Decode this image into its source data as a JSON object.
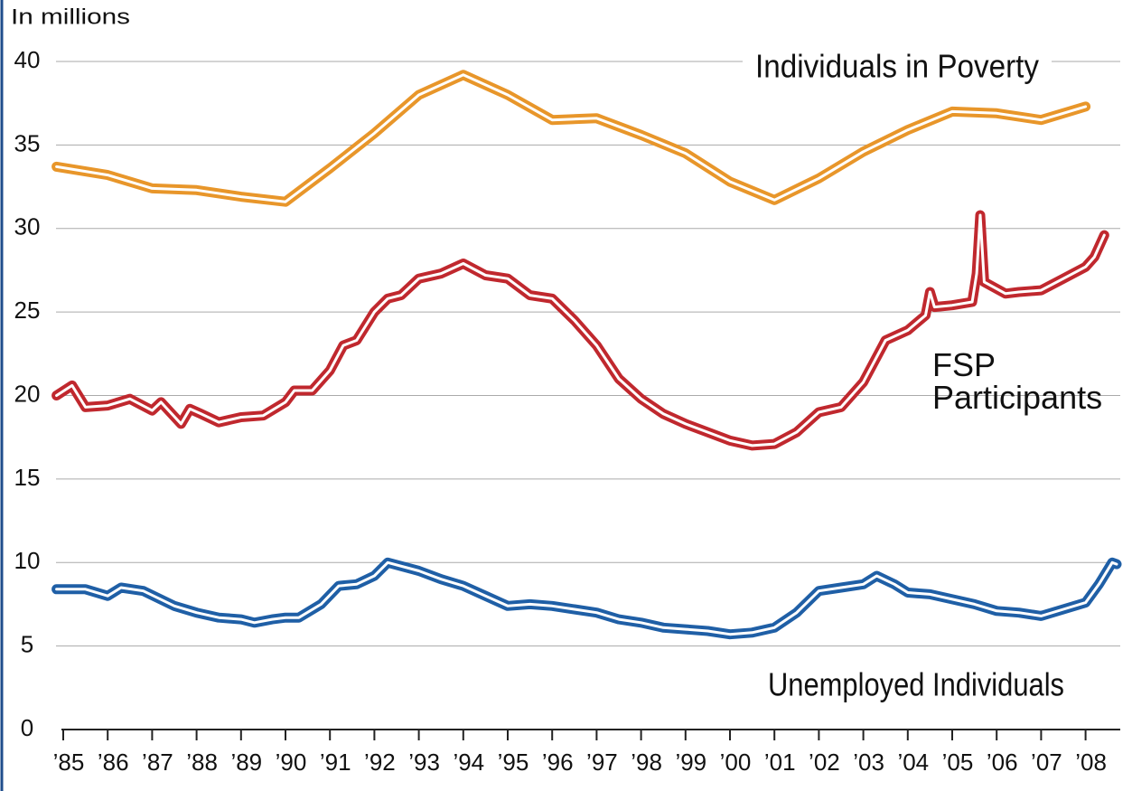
{
  "chart_data": {
    "type": "line",
    "y_label": "In millions",
    "xlim": [
      1984.85,
      2008.8
    ],
    "xticks": [
      {
        "value": 1985,
        "label": "’85"
      },
      {
        "value": 1986,
        "label": "’86"
      },
      {
        "value": 1987,
        "label": "’87"
      },
      {
        "value": 1988,
        "label": "’88"
      },
      {
        "value": 1989,
        "label": "’89"
      },
      {
        "value": 1990,
        "label": "’90"
      },
      {
        "value": 1991,
        "label": "’91"
      },
      {
        "value": 1992,
        "label": "’92"
      },
      {
        "value": 1993,
        "label": "’93"
      },
      {
        "value": 1994,
        "label": "’94"
      },
      {
        "value": 1995,
        "label": "’95"
      },
      {
        "value": 1996,
        "label": "’96"
      },
      {
        "value": 1997,
        "label": "’97"
      },
      {
        "value": 1998,
        "label": "’98"
      },
      {
        "value": 1999,
        "label": "’99"
      },
      {
        "value": 2000,
        "label": "’00"
      },
      {
        "value": 2001,
        "label": "’01"
      },
      {
        "value": 2002,
        "label": "’02"
      },
      {
        "value": 2003,
        "label": "’03"
      },
      {
        "value": 2004,
        "label": "’04"
      },
      {
        "value": 2005,
        "label": "’05"
      },
      {
        "value": 2006,
        "label": "’06"
      },
      {
        "value": 2007,
        "label": "’07"
      },
      {
        "value": 2008,
        "label": "’08"
      }
    ],
    "ylim": [
      0,
      40
    ],
    "yticks": [
      0,
      5,
      10,
      15,
      20,
      25,
      30,
      35,
      40
    ],
    "grid": true,
    "series": [
      {
        "name": "Individuals in Poverty",
        "color": "#e8962a",
        "x": [
          1984.85,
          1986,
          1987,
          1988,
          1989,
          1990,
          1991,
          1992,
          1993,
          1994,
          1995,
          1996,
          1997,
          1998,
          1999,
          2000,
          2001,
          2002,
          2003,
          2004,
          2005,
          2006,
          2007,
          2008
        ],
        "values": [
          33.7,
          33.2,
          32.4,
          32.3,
          31.9,
          31.6,
          33.6,
          35.7,
          38.0,
          39.2,
          38.0,
          36.5,
          36.6,
          35.6,
          34.5,
          32.8,
          31.7,
          33.0,
          34.6,
          35.9,
          37.0,
          36.9,
          36.5,
          37.3
        ]
      },
      {
        "name": "FSP Participants",
        "color": "#c0282e",
        "x": [
          1984.85,
          1985.2,
          1985.5,
          1986,
          1986.5,
          1987,
          1987.2,
          1987.65,
          1987.85,
          1988.1,
          1988.5,
          1989,
          1989.5,
          1990,
          1990.2,
          1990.6,
          1991,
          1991.3,
          1991.6,
          1992,
          1992.3,
          1992.6,
          1993,
          1993.5,
          1994,
          1994.5,
          1995,
          1995.5,
          1996,
          1996.5,
          1997,
          1997.5,
          1998,
          1998.5,
          1999,
          1999.5,
          2000,
          2000.5,
          2001,
          2001.5,
          2002,
          2002.5,
          2003,
          2003.5,
          2004,
          2004.4,
          2004.5,
          2004.6,
          2005,
          2005.45,
          2005.55,
          2005.63,
          2005.72,
          2006.2,
          2006.5,
          2007,
          2007.5,
          2008,
          2008.2,
          2008.42
        ],
        "values": [
          20.0,
          20.6,
          19.3,
          19.4,
          19.8,
          19.1,
          19.6,
          18.3,
          19.2,
          18.9,
          18.4,
          18.7,
          18.8,
          19.6,
          20.3,
          20.3,
          21.5,
          23.0,
          23.3,
          25.0,
          25.8,
          26.0,
          27.0,
          27.3,
          27.9,
          27.2,
          27.0,
          26.0,
          25.8,
          24.5,
          23.0,
          21.0,
          19.8,
          18.9,
          18.3,
          17.8,
          17.3,
          17.0,
          17.1,
          17.8,
          19.0,
          19.3,
          20.8,
          23.3,
          23.9,
          24.8,
          26.2,
          25.3,
          25.4,
          25.6,
          27.3,
          30.8,
          26.8,
          26.1,
          26.2,
          26.3,
          27.0,
          27.7,
          28.3,
          29.6
        ]
      },
      {
        "name": "Unemployed Individuals",
        "color": "#1f5fa6",
        "x": [
          1984.85,
          1985.5,
          1986,
          1986.3,
          1986.8,
          1987.5,
          1988,
          1988.5,
          1989,
          1989.3,
          1989.7,
          1990,
          1990.3,
          1990.8,
          1991.2,
          1991.6,
          1992,
          1992.3,
          1993,
          1993.5,
          1994,
          1994.5,
          1995,
          1995.5,
          1996,
          1996.5,
          1997,
          1997.5,
          1998,
          1998.5,
          1999,
          1999.5,
          2000,
          2000.5,
          2001,
          2001.5,
          2002,
          2002.5,
          2003,
          2003.3,
          2003.7,
          2004,
          2004.5,
          2005,
          2005.5,
          2006,
          2006.5,
          2007,
          2007.5,
          2008,
          2008.3,
          2008.6,
          2008.7
        ],
        "values": [
          8.4,
          8.4,
          8.0,
          8.5,
          8.3,
          7.4,
          7.0,
          6.7,
          6.6,
          6.4,
          6.6,
          6.7,
          6.7,
          7.5,
          8.6,
          8.7,
          9.2,
          10.0,
          9.5,
          9.0,
          8.6,
          8.0,
          7.4,
          7.5,
          7.4,
          7.2,
          7.0,
          6.6,
          6.4,
          6.1,
          6.0,
          5.9,
          5.7,
          5.8,
          6.1,
          7.0,
          8.3,
          8.5,
          8.7,
          9.2,
          8.7,
          8.2,
          8.1,
          7.8,
          7.5,
          7.1,
          7.0,
          6.8,
          7.2,
          7.6,
          8.7,
          10.0,
          9.9
        ]
      }
    ]
  }
}
